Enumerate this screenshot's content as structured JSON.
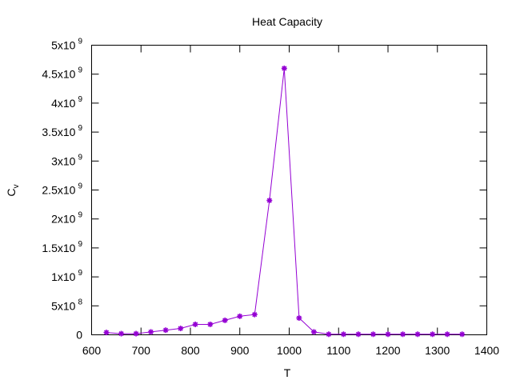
{
  "chart_data": {
    "type": "line",
    "title": "Heat Capacity",
    "xlabel": "T",
    "ylabel": {
      "base": "C",
      "sub": "v"
    },
    "xlim": [
      600,
      1400
    ],
    "ylim": [
      0,
      5000000000
    ],
    "x_ticks": [
      600,
      700,
      800,
      900,
      1000,
      1100,
      1200,
      1300,
      1400
    ],
    "y_ticks": [
      {
        "value": 0,
        "mantissa": "0",
        "exp": ""
      },
      {
        "value": 500000000,
        "mantissa": "5x10",
        "exp": "8"
      },
      {
        "value": 1000000000,
        "mantissa": "1x10",
        "exp": "9"
      },
      {
        "value": 1500000000,
        "mantissa": "1.5x10",
        "exp": "9"
      },
      {
        "value": 2000000000,
        "mantissa": "2x10",
        "exp": "9"
      },
      {
        "value": 2500000000,
        "mantissa": "2.5x10",
        "exp": "9"
      },
      {
        "value": 3000000000,
        "mantissa": "3x10",
        "exp": "9"
      },
      {
        "value": 3500000000,
        "mantissa": "3.5x10",
        "exp": "9"
      },
      {
        "value": 4000000000,
        "mantissa": "4x10",
        "exp": "9"
      },
      {
        "value": 4500000000,
        "mantissa": "4.5x10",
        "exp": "9"
      },
      {
        "value": 5000000000,
        "mantissa": "5x10",
        "exp": "9"
      }
    ],
    "grid": false,
    "colors": {
      "series": "#9400d3",
      "axes": "#000000"
    },
    "series": [
      {
        "x": [
          630,
          660,
          690,
          720,
          750,
          780,
          810,
          840,
          870,
          900,
          930,
          960,
          990,
          1020,
          1050,
          1080,
          1110,
          1140,
          1170,
          1200,
          1230,
          1260,
          1290,
          1320,
          1350
        ],
        "y": [
          40000000,
          20000000,
          20000000,
          50000000,
          80000000,
          110000000,
          180000000,
          180000000,
          250000000,
          320000000,
          350000000,
          2320000000,
          4600000000,
          290000000,
          50000000,
          10000000,
          10000000,
          10000000,
          10000000,
          10000000,
          10000000,
          10000000,
          10000000,
          10000000,
          10000000
        ]
      }
    ]
  }
}
